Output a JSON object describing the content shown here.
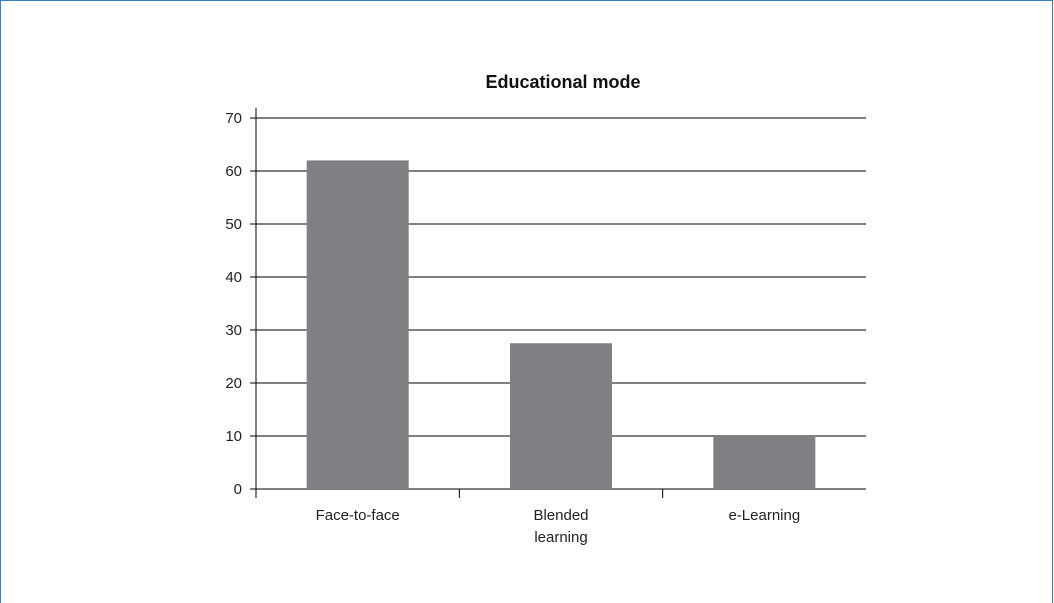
{
  "chart_data": {
    "type": "bar",
    "title": "Educational mode",
    "categories": [
      "Face-to-face",
      "Blended learning",
      "e-Learning"
    ],
    "category_lines": [
      [
        "Face-to-face"
      ],
      [
        "Blended",
        "learning"
      ],
      [
        "e-Learning"
      ]
    ],
    "values": [
      62,
      27.5,
      10
    ],
    "ylim": [
      0,
      70
    ],
    "yticks": [
      0,
      10,
      20,
      30,
      40,
      50,
      60,
      70
    ],
    "xlabel": "",
    "ylabel": "",
    "grid": true,
    "legend": "none",
    "colors": {
      "bar": "#7f8083",
      "grid": "#000000",
      "frame": "#3a7fb8"
    }
  }
}
